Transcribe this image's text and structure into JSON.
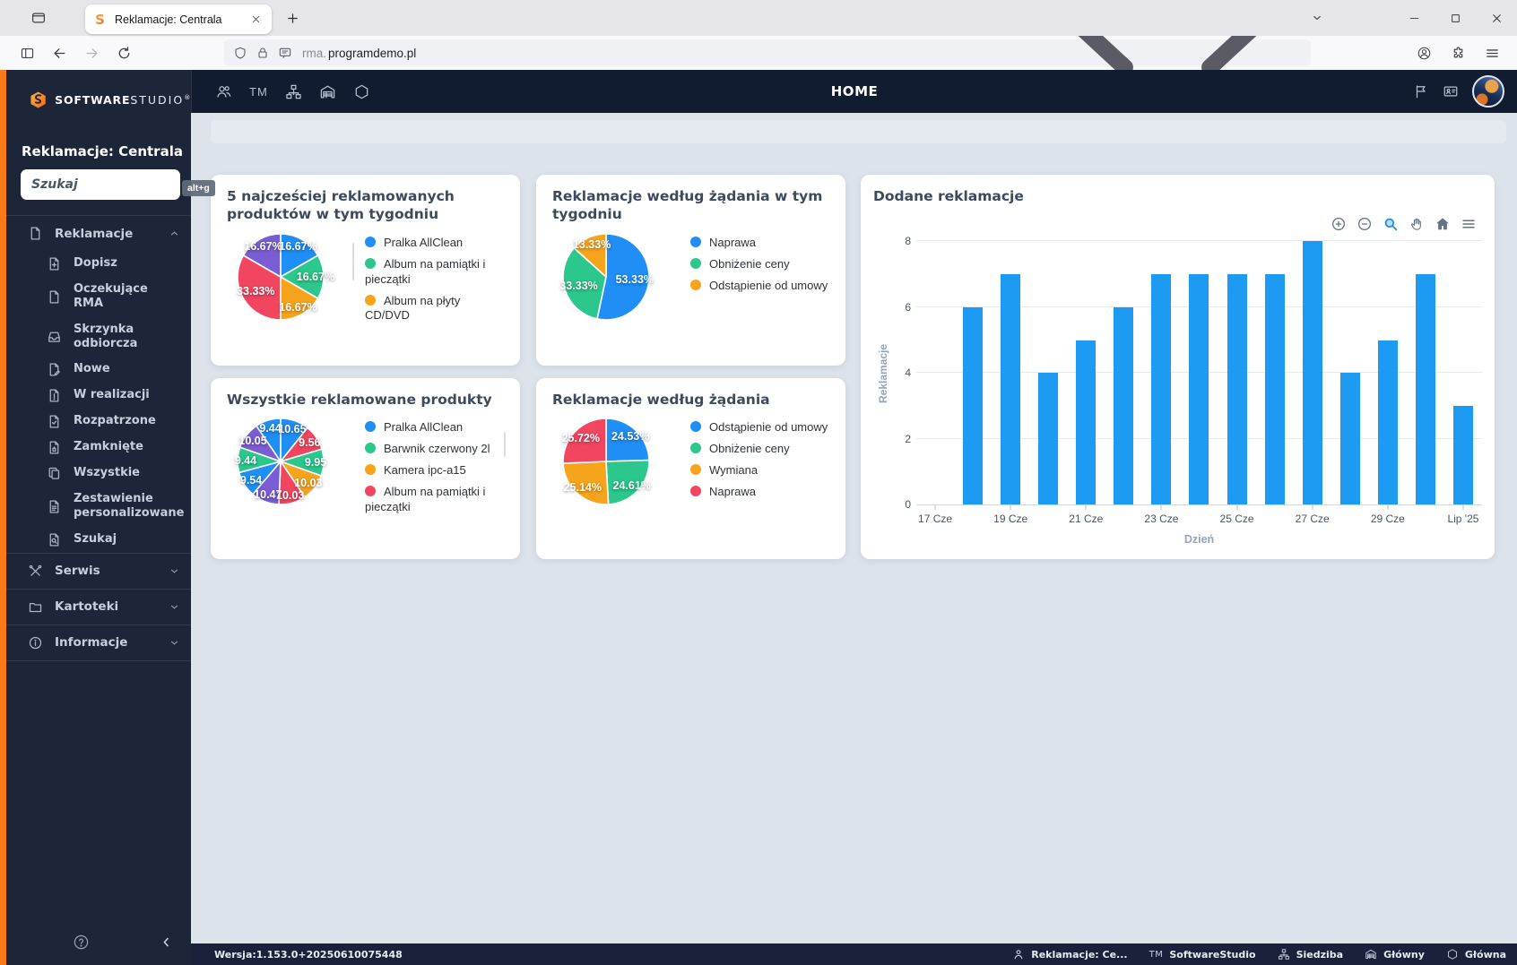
{
  "palette": {
    "blue": "#1f8ef5",
    "green": "#2bc78c",
    "orange": "#f7a41d",
    "red": "#f2455f",
    "purple": "#7a5dd4",
    "bar_blue": "#1d9af2"
  },
  "browser": {
    "tab_title": "Reklamacje: Centrala",
    "url_prefix": "rma.",
    "url_host": "programdemo.pl"
  },
  "sidebar": {
    "brand_bold": "SOFTWARE",
    "brand_light": "STUDIO",
    "brand_reg": "®",
    "app_title": "Reklamacje: Centrala",
    "search_placeholder": "Szukaj",
    "shortcut_badge": "alt+g",
    "sections": [
      {
        "label": "Reklamacje",
        "icon": "file",
        "expanded": true,
        "children": [
          {
            "label": "Dopisz",
            "icon": "file-plus"
          },
          {
            "label": "Oczekujące RMA",
            "icon": "file"
          },
          {
            "label": "Skrzynka odbiorcza",
            "icon": "inbox"
          },
          {
            "label": "Nowe",
            "icon": "file-pen"
          },
          {
            "label": "W realizacji",
            "icon": "file-alert"
          },
          {
            "label": "Rozpatrzone",
            "icon": "file-check"
          },
          {
            "label": "Zamknięte",
            "icon": "file-closed"
          },
          {
            "label": "Wszystkie",
            "icon": "copies"
          },
          {
            "label": "Zestawienie personalizowane",
            "icon": "file-lines"
          },
          {
            "label": "Szukaj",
            "icon": "file-search"
          }
        ]
      },
      {
        "label": "Serwis",
        "icon": "tools",
        "expanded": false
      },
      {
        "label": "Kartoteki",
        "icon": "folder",
        "expanded": false
      },
      {
        "label": "Informacje",
        "icon": "info",
        "expanded": false
      }
    ]
  },
  "topbar": {
    "home_label": "HOME",
    "tm_label": "TM"
  },
  "statusbar": {
    "version": "Wersja:1.153.0+20250610075448",
    "items": [
      {
        "icon": "person",
        "label": "Reklamacje: Ce..."
      },
      {
        "icon": "tm",
        "label": "SoftwareStudio"
      },
      {
        "icon": "sitemap",
        "label": "Siedziba"
      },
      {
        "icon": "warehouse",
        "label": "Główny"
      },
      {
        "icon": "hexagon",
        "label": "Główna"
      }
    ]
  },
  "chart_data": [
    {
      "type": "pie",
      "title": "5 najcześciej reklamowanych produktów w tym tygodniu",
      "slices": [
        {
          "label": "16.67%",
          "value": 16.67,
          "color": "blue"
        },
        {
          "label": "16.67%",
          "value": 16.67,
          "color": "green"
        },
        {
          "label": "16.67%",
          "value": 16.67,
          "color": "orange"
        },
        {
          "label": "33.33%",
          "value": 33.33,
          "color": "red"
        },
        {
          "label": "16.67%",
          "value": 16.67,
          "color": "purple"
        }
      ],
      "legend": [
        {
          "label": "Pralka AllClean",
          "color": "blue"
        },
        {
          "label": "Album na pamiątki i pieczątki",
          "color": "green"
        },
        {
          "label": "Album na płyty CD/DVD",
          "color": "orange"
        }
      ]
    },
    {
      "type": "pie",
      "title": "Reklamacje według żądania w tym tygodniu",
      "slices": [
        {
          "label": "53.33%",
          "value": 53.33,
          "color": "blue"
        },
        {
          "label": "33.33%",
          "value": 33.33,
          "color": "green"
        },
        {
          "label": "13.33%",
          "value": 13.33,
          "color": "orange"
        }
      ],
      "legend": [
        {
          "label": "Naprawa",
          "color": "blue"
        },
        {
          "label": "Obniżenie ceny",
          "color": "green"
        },
        {
          "label": "Odstąpienie od umowy",
          "color": "orange"
        }
      ]
    },
    {
      "type": "pie",
      "title": "Wszystkie reklamowane produkty",
      "slices": [
        {
          "label": "10.65",
          "value": 10.65,
          "color": "blue"
        },
        {
          "label": "9.56",
          "value": 9.56,
          "color": "red"
        },
        {
          "label": "9.95",
          "value": 9.95,
          "color": "green"
        },
        {
          "label": "10.03",
          "value": 10.03,
          "color": "orange"
        },
        {
          "label": "10.03",
          "value": 10.03,
          "color": "red"
        },
        {
          "label": "10.47",
          "value": 10.47,
          "color": "purple"
        },
        {
          "label": "9.54",
          "value": 9.54,
          "color": "blue"
        },
        {
          "label": "9.44",
          "value": 9.44,
          "color": "green"
        },
        {
          "label": "10.05",
          "value": 10.05,
          "color": "purple"
        },
        {
          "label": "9.44",
          "value": 9.44,
          "color": "blue"
        }
      ],
      "legend": [
        {
          "label": "Pralka AllClean",
          "color": "blue"
        },
        {
          "label": "Barwnik czerwony 2l",
          "color": "green"
        },
        {
          "label": "Kamera ipc-a15",
          "color": "orange"
        },
        {
          "label": "Album na pamiątki i pieczątki",
          "color": "red"
        }
      ]
    },
    {
      "type": "pie",
      "title": "Reklamacje według żądania",
      "slices": [
        {
          "label": "24.53%",
          "value": 24.53,
          "color": "blue"
        },
        {
          "label": "24.61%",
          "value": 24.61,
          "color": "green"
        },
        {
          "label": "25.14%",
          "value": 25.14,
          "color": "orange"
        },
        {
          "label": "25.72%",
          "value": 25.72,
          "color": "red"
        }
      ],
      "legend": [
        {
          "label": "Odstąpienie od umowy",
          "color": "blue"
        },
        {
          "label": "Obniżenie ceny",
          "color": "green"
        },
        {
          "label": "Wymiana",
          "color": "orange"
        },
        {
          "label": "Naprawa",
          "color": "red"
        }
      ]
    },
    {
      "type": "bar",
      "title": "Dodane reklamacje",
      "xlabel": "Dzień",
      "ylabel": "Reklamacje",
      "ylim": [
        0,
        8
      ],
      "yticks": [
        0,
        2,
        4,
        6,
        8
      ],
      "values": [
        null,
        6,
        7,
        4,
        5,
        6,
        7,
        7,
        7,
        7,
        8,
        4,
        5,
        7,
        3
      ],
      "xticks": [
        {
          "slot": 0,
          "label": "17 Cze"
        },
        {
          "slot": 2,
          "label": "19 Cze"
        },
        {
          "slot": 4,
          "label": "21 Cze"
        },
        {
          "slot": 6,
          "label": "23 Cze"
        },
        {
          "slot": 8,
          "label": "25 Cze"
        },
        {
          "slot": 10,
          "label": "27 Cze"
        },
        {
          "slot": 12,
          "label": "29 Cze"
        },
        {
          "slot": 14,
          "label": "Lip '25"
        }
      ],
      "bar_color": "bar_blue",
      "toolbar": [
        "zoom-in",
        "zoom-out",
        "box-zoom",
        "pan",
        "home",
        "menu-bars"
      ],
      "legend_position": "none",
      "grid": true
    }
  ]
}
